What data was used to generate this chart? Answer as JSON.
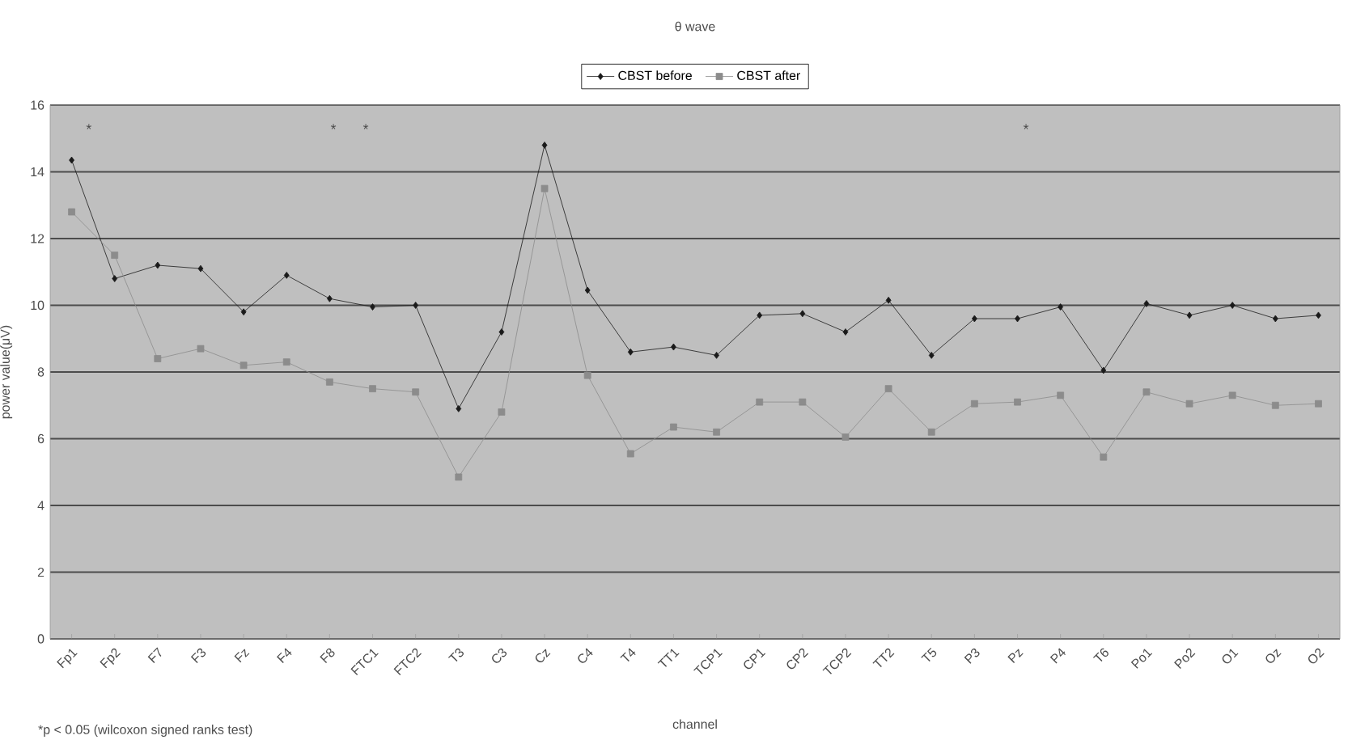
{
  "chart_data": {
    "type": "line",
    "title": "θ wave",
    "xlabel": "channel",
    "ylabel": "power value(μV)",
    "categories": [
      "Fp1",
      "Fp2",
      "F7",
      "F3",
      "Fz",
      "F4",
      "F8",
      "FTC1",
      "FTC2",
      "T3",
      "C3",
      "Cz",
      "C4",
      "T4",
      "TT1",
      "TCP1",
      "CP1",
      "CP2",
      "TCP2",
      "TT2",
      "T5",
      "P3",
      "Pz",
      "P4",
      "T6",
      "Po1",
      "Po2",
      "O1",
      "Oz",
      "O2"
    ],
    "series": [
      {
        "name": "CBST before",
        "color": "#1a1a1a",
        "marker": "diamond",
        "values": [
          14.35,
          10.8,
          11.2,
          11.1,
          9.8,
          10.9,
          10.2,
          9.95,
          10.0,
          6.9,
          9.2,
          14.8,
          10.45,
          8.6,
          8.75,
          8.5,
          9.7,
          9.75,
          9.2,
          10.15,
          8.5,
          9.6,
          9.6,
          9.95,
          8.05,
          10.05,
          9.7,
          10.0,
          9.6,
          9.7
        ]
      },
      {
        "name": "CBST after",
        "color": "#8c8c8c",
        "marker": "square",
        "values": [
          12.8,
          11.5,
          8.4,
          8.7,
          8.2,
          8.3,
          7.7,
          7.5,
          7.4,
          4.85,
          6.8,
          13.5,
          7.9,
          5.55,
          6.35,
          6.2,
          7.1,
          7.1,
          6.05,
          7.5,
          6.2,
          7.05,
          7.1,
          7.3,
          5.45,
          7.4,
          7.05,
          7.3,
          7.0,
          7.05
        ]
      }
    ],
    "ylim": [
      0,
      16
    ],
    "yticks": [
      0,
      2,
      4,
      6,
      8,
      10,
      12,
      14,
      16
    ],
    "grid": "y",
    "legend": "top",
    "line_style": "solid",
    "annotations": [
      "*",
      "*",
      "*",
      "*",
      "*p < 0.05 (wilcoxon signed ranks test)"
    ]
  }
}
